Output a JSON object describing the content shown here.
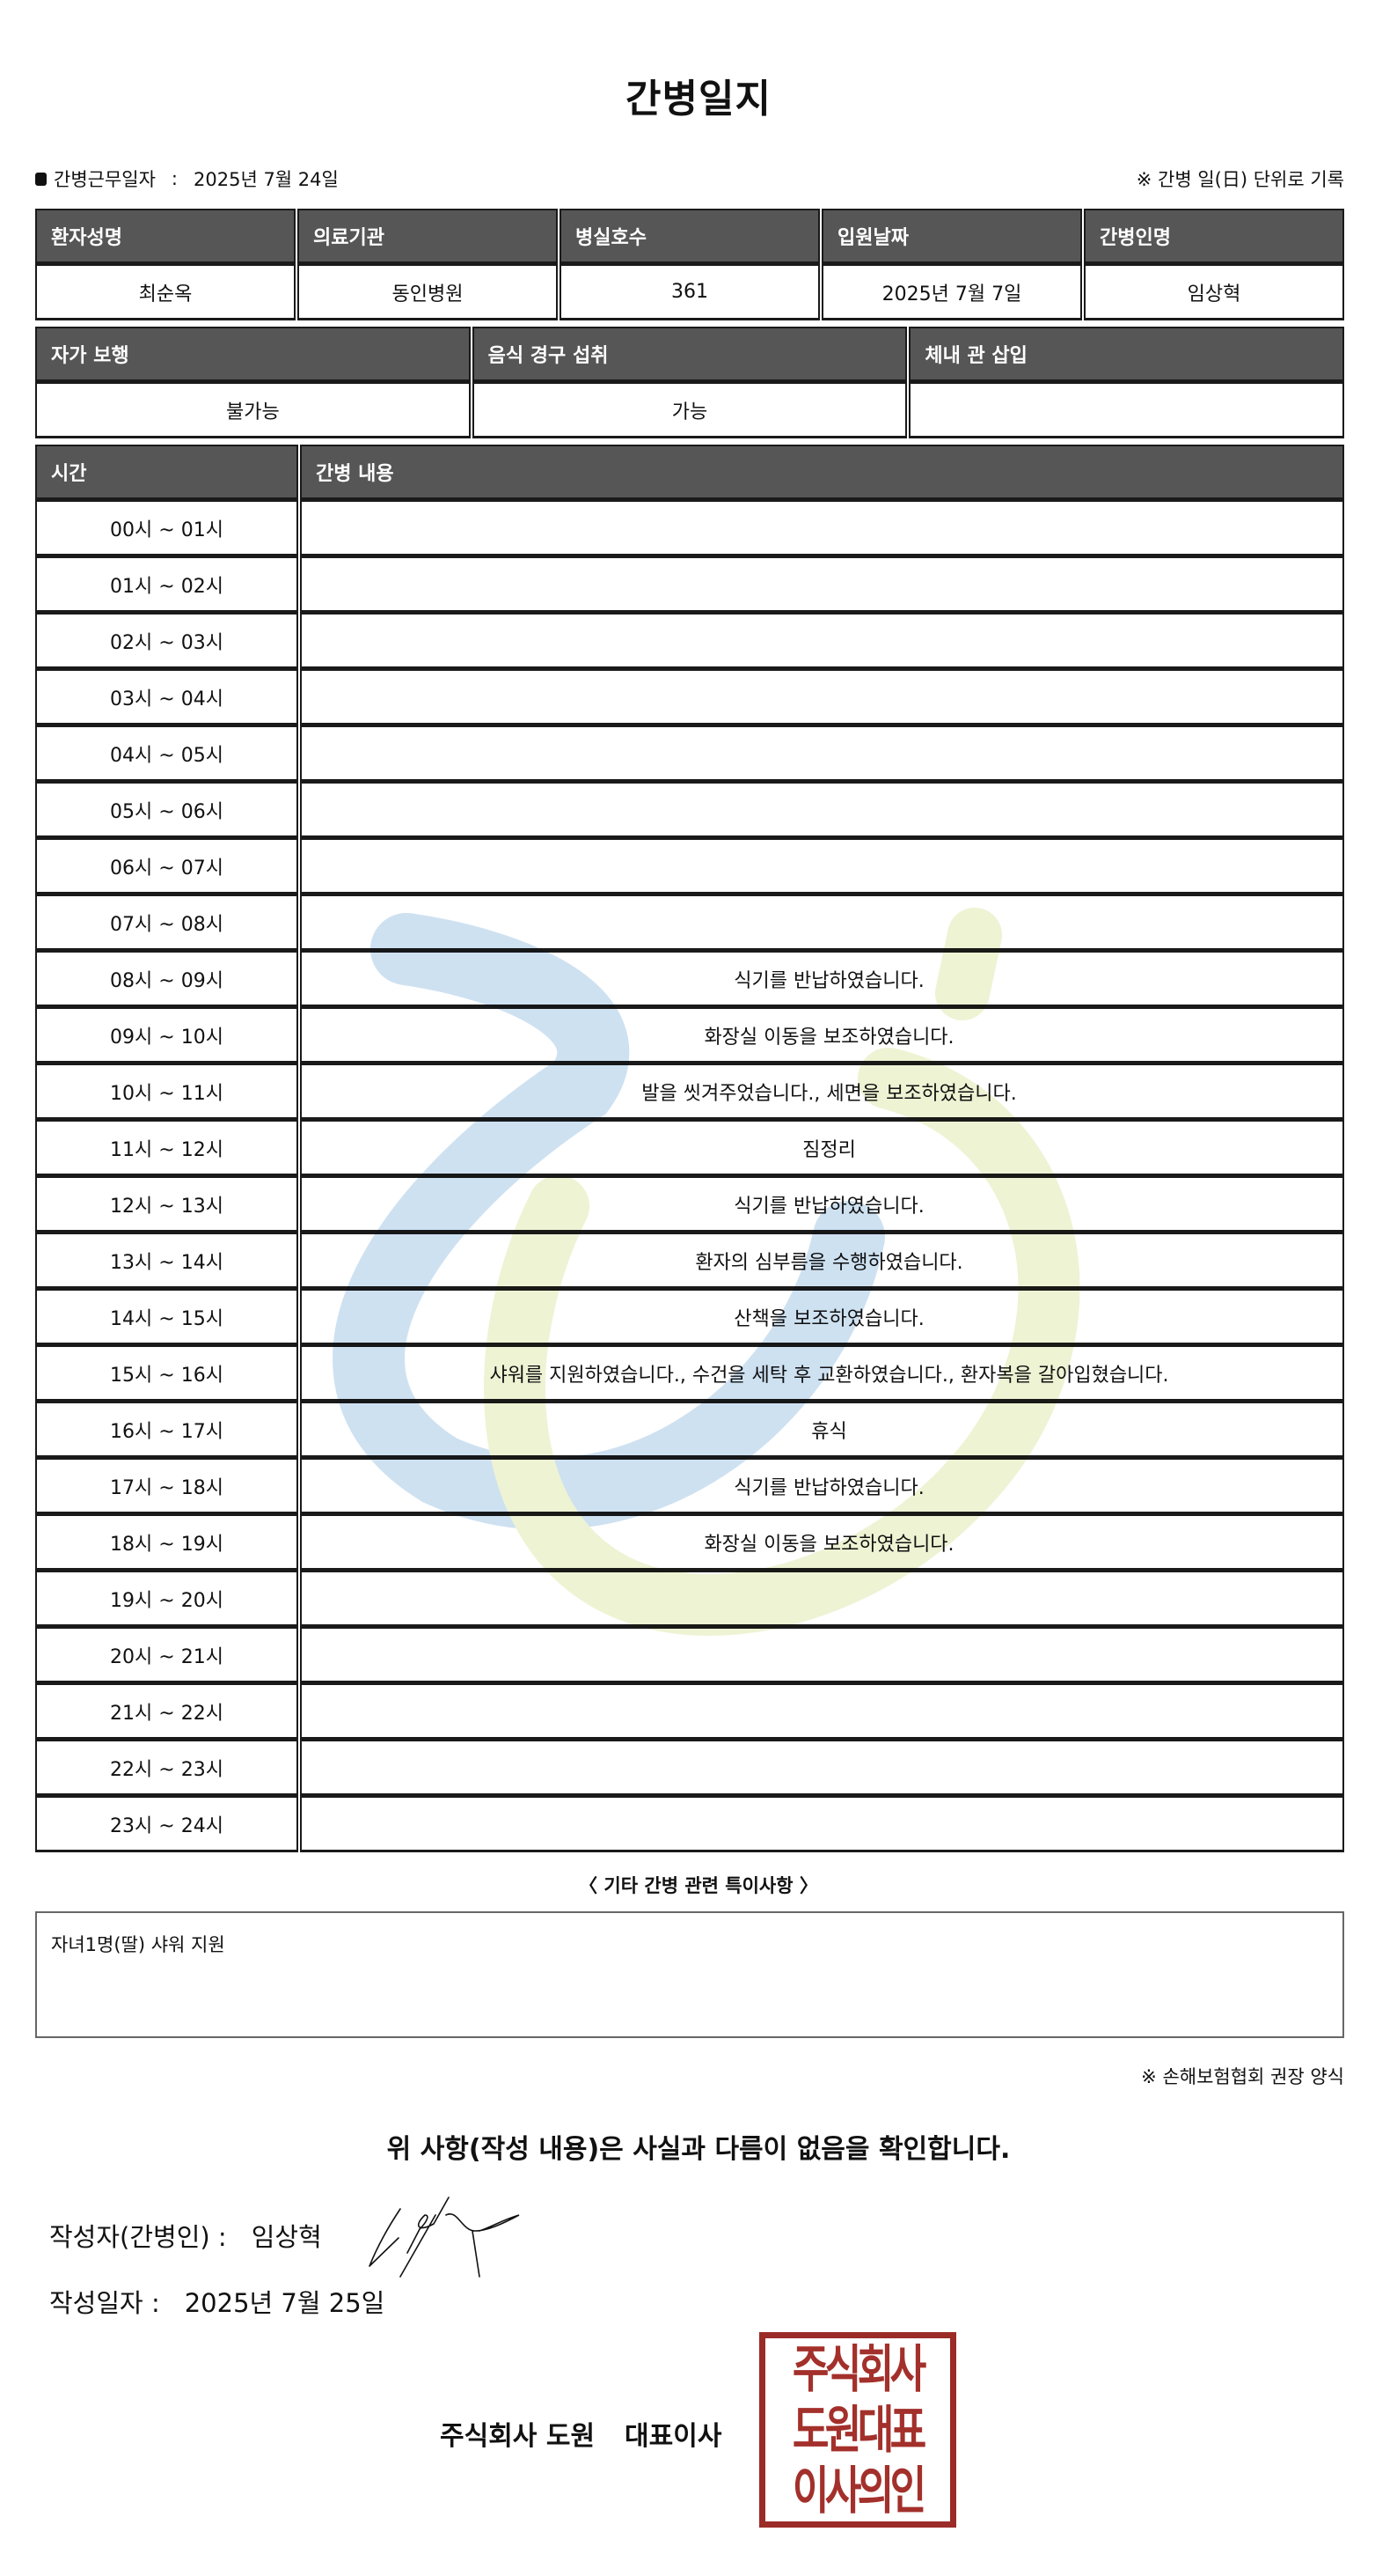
{
  "title": "간병일지",
  "work_date_label": "간병근무일자",
  "work_date_sep": ":",
  "work_date": "2025년 7월 24일",
  "unit_note": "※ 간병 일(日) 단위로 기록",
  "patient_table": {
    "headers": [
      "환자성명",
      "의료기관",
      "병실호수",
      "입원날짜",
      "간병인명"
    ],
    "values": [
      "최순옥",
      "동인병원",
      "361",
      "2025년 7월 7일",
      "임상혁"
    ]
  },
  "status_table": {
    "headers": [
      "자가 보행",
      "음식 경구 섭취",
      "체내 관 삽입"
    ],
    "values": [
      "불가능",
      "가능",
      ""
    ]
  },
  "log_table": {
    "headers": [
      "시간",
      "간병 내용"
    ],
    "rows": [
      {
        "time": "00시 ~ 01시",
        "content": ""
      },
      {
        "time": "01시 ~ 02시",
        "content": ""
      },
      {
        "time": "02시 ~ 03시",
        "content": ""
      },
      {
        "time": "03시 ~ 04시",
        "content": ""
      },
      {
        "time": "04시 ~ 05시",
        "content": ""
      },
      {
        "time": "05시 ~ 06시",
        "content": ""
      },
      {
        "time": "06시 ~ 07시",
        "content": ""
      },
      {
        "time": "07시 ~ 08시",
        "content": ""
      },
      {
        "time": "08시 ~ 09시",
        "content": "식기를 반납하였습니다."
      },
      {
        "time": "09시 ~ 10시",
        "content": "화장실 이동을 보조하였습니다."
      },
      {
        "time": "10시 ~ 11시",
        "content": "발을 씻겨주었습니다., 세면을 보조하였습니다."
      },
      {
        "time": "11시 ~ 12시",
        "content": "짐정리"
      },
      {
        "time": "12시 ~ 13시",
        "content": "식기를 반납하였습니다."
      },
      {
        "time": "13시 ~ 14시",
        "content": "환자의 심부름을 수행하였습니다."
      },
      {
        "time": "14시 ~ 15시",
        "content": "산책을 보조하였습니다."
      },
      {
        "time": "15시 ~ 16시",
        "content": "샤워를 지원하였습니다., 수건을 세탁 후 교환하였습니다., 환자복을 갈아입혔습니다."
      },
      {
        "time": "16시 ~ 17시",
        "content": "휴식"
      },
      {
        "time": "17시 ~ 18시",
        "content": "식기를 반납하였습니다."
      },
      {
        "time": "18시 ~ 19시",
        "content": "화장실 이동을 보조하였습니다."
      },
      {
        "time": "19시 ~ 20시",
        "content": ""
      },
      {
        "time": "20시 ~ 21시",
        "content": ""
      },
      {
        "time": "21시 ~ 22시",
        "content": ""
      },
      {
        "time": "22시 ~ 23시",
        "content": ""
      },
      {
        "time": "23시 ~ 24시",
        "content": ""
      }
    ]
  },
  "special_notes": {
    "title": "〈 기타 간병 관련 특이사항 〉",
    "text": "자녀1명(딸) 샤워 지원"
  },
  "form_note": "※ 손해보험협회 권장 양식",
  "confirm_statement": "위 사항(작성 내용)은 사실과 다름이 없음을 확인합니다.",
  "writer": {
    "label": "작성자(간병인) :",
    "name": "임상혁"
  },
  "write_date": {
    "label": "작성일자 :",
    "value": "2025년 7월 25일"
  },
  "company": {
    "name": "주식회사 도원",
    "title": "대표이사"
  },
  "stamp": {
    "lines": [
      "주식회사",
      "도원대표",
      "이사의인"
    ],
    "color": "#a3302b"
  },
  "colors": {
    "header_bg": "#565656",
    "watermark_blue": "#c9def0",
    "watermark_yellow": "#eef3d4"
  }
}
